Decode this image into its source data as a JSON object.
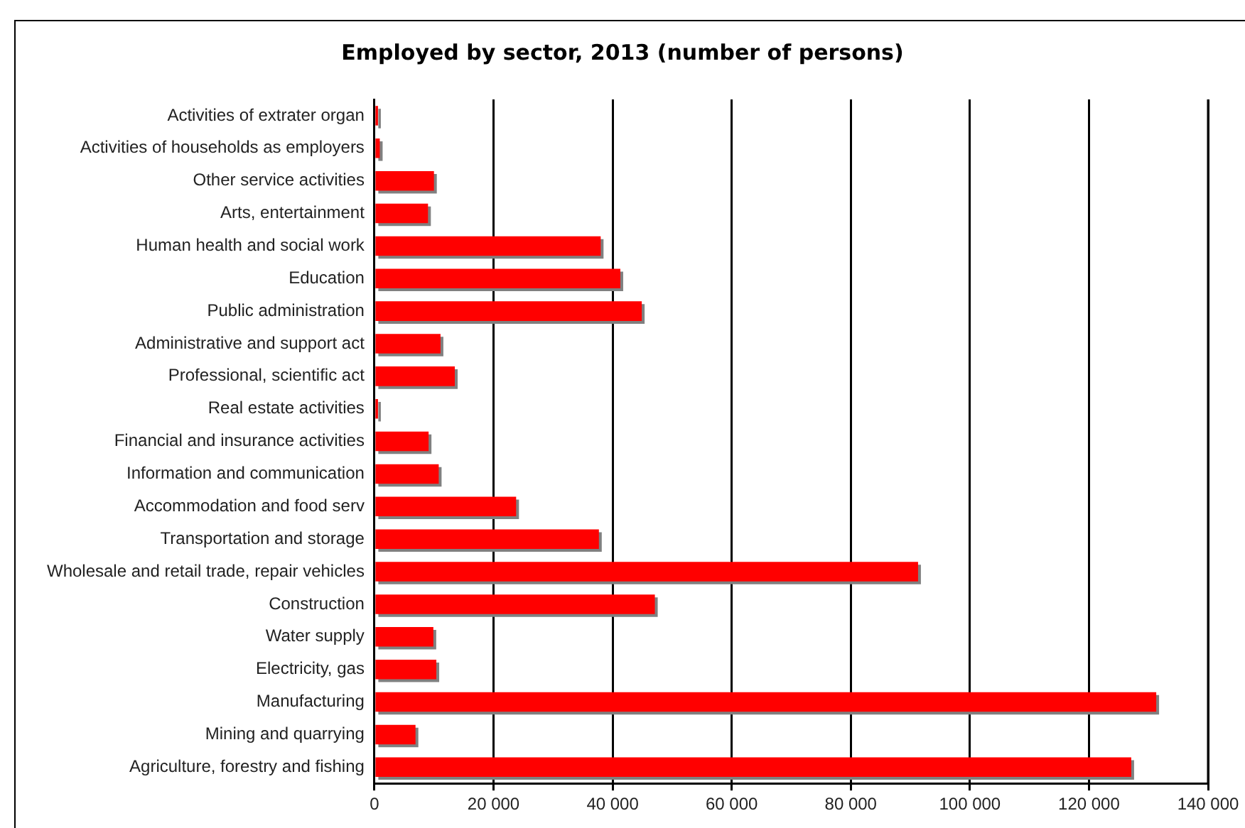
{
  "chart_data": {
    "type": "bar",
    "orientation": "horizontal",
    "title": "Employed by sector, 2013 (number of persons)",
    "categories": [
      "Activities of extrater organ",
      "Activities of households as employers",
      "Other service activities",
      "Arts, entertainment",
      "Human health and social work",
      "Education",
      "Public administration",
      "Administrative and support act",
      "Professional, scientific act",
      "Real estate activities",
      "Financial and insurance activities",
      "Information and communication",
      "Accommodation and food serv",
      "Transportation and storage",
      "Wholesale and retail trade, repair vehicles",
      "Construction",
      "Water supply",
      "Electricity, gas",
      "Manufacturing",
      "Mining and quarrying",
      "Agriculture, forestry and fishing"
    ],
    "values": [
      600,
      900,
      10000,
      9000,
      38000,
      41300,
      44900,
      11100,
      13500,
      600,
      9100,
      10800,
      23800,
      37700,
      91300,
      47100,
      9900,
      10400,
      131300,
      6900,
      127100
    ],
    "color": "#ff0000",
    "xlim": [
      0,
      140000
    ],
    "xticks": [
      {
        "value": 0,
        "label": "0"
      },
      {
        "value": 20000,
        "label": "20 000"
      },
      {
        "value": 40000,
        "label": "40 000"
      },
      {
        "value": 60000,
        "label": "60 000"
      },
      {
        "value": 80000,
        "label": "80 000"
      },
      {
        "value": 100000,
        "label": "100 000"
      },
      {
        "value": 120000,
        "label": "120 000"
      },
      {
        "value": 140000,
        "label": "140 000"
      }
    ],
    "grid": "x",
    "legend": false
  }
}
